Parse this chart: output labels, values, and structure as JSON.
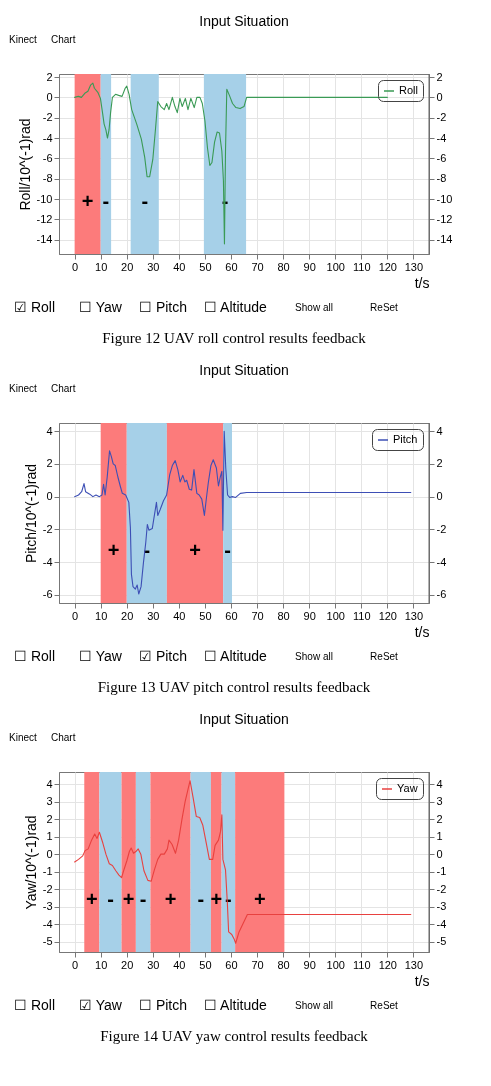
{
  "chart_data": [
    {
      "type": "line",
      "title": "Input Situation",
      "xlabel": "t/s",
      "ylabel": "Roll/10^(-1)rad",
      "legend": "top right",
      "grid": true,
      "xlim": [
        -6,
        136
      ],
      "xticks": [
        0,
        10,
        20,
        30,
        40,
        50,
        60,
        70,
        80,
        90,
        100,
        110,
        120,
        130
      ],
      "ylim": [
        -15.4,
        2.3
      ],
      "yticks": [
        -14,
        -12,
        -10,
        -8,
        -6,
        -4,
        -2,
        0,
        2
      ],
      "y2lim": [
        -15.4,
        2.3
      ],
      "y2ticks": [
        -14,
        -12,
        -10,
        -8,
        -6,
        -4,
        -2,
        0,
        2
      ],
      "series": [
        {
          "name": "Roll",
          "color": "#3a9a55",
          "x": [
            0,
            1.4,
            2.6,
            3.9,
            5.1,
            6.1,
            7,
            7.6,
            8.9,
            9.9,
            10.7,
            11.3,
            12,
            12.6,
            13.2,
            13.8,
            14.5,
            15.7,
            16.9,
            18.2,
            19.4,
            20,
            20.9,
            21.9,
            23.8,
            25.6,
            26.9,
            27.8,
            28.8,
            30,
            31,
            31.9,
            33.1,
            34.4,
            35.3,
            36.2,
            37.5,
            38.5,
            39.4,
            40.4,
            41.3,
            42.5,
            43.5,
            44.6,
            45.9,
            46.9,
            48.1,
            49,
            50,
            51,
            51.9,
            52.7,
            53.7,
            54.7,
            55.6,
            56.5,
            57.1,
            57.5,
            57.9,
            58.4,
            59.4,
            60.6,
            61.9,
            63.5,
            65,
            66,
            120
          ],
          "values": [
            0,
            0.1,
            0,
            0.4,
            0.6,
            1.2,
            1.4,
            0.9,
            0.5,
            -0.1,
            -1.5,
            -2.6,
            -3.2,
            -4.0,
            -3.2,
            -1.5,
            0,
            0.3,
            0.2,
            0.1,
            0.9,
            1.1,
            0.3,
            -1.2,
            -2.6,
            -4.1,
            -5.9,
            -7.8,
            -7.8,
            -6.1,
            -3.2,
            -0.4,
            -0.9,
            -1.2,
            -0.6,
            -1.2,
            0,
            -0.9,
            -1.5,
            -0.1,
            -0.9,
            -0.1,
            -1.2,
            -0.1,
            -1.0,
            0,
            0,
            -0.6,
            -2.3,
            -5.0,
            -6.7,
            -6.4,
            -4.4,
            -3.4,
            -3.5,
            -5.3,
            -8.2,
            -14.4,
            -5.3,
            0.8,
            0.2,
            -0.6,
            -1.0,
            -1.1,
            -0.9,
            0,
            0
          ]
        }
      ],
      "bands": [
        {
          "axis": "x",
          "from": 0,
          "to": 10,
          "color": "#fc7b7b",
          "label": "+"
        },
        {
          "axis": "x",
          "from": 10,
          "to": 14,
          "color": "#a6d0e8",
          "label": "-"
        },
        {
          "axis": "x",
          "from": 21.5,
          "to": 32.3,
          "color": "#a6d0e8",
          "label": "-"
        },
        {
          "axis": "x",
          "from": 49.6,
          "to": 65.8,
          "color": "#a6d0e8",
          "label": "-"
        }
      ],
      "annotations": [
        "Kinect",
        "Chart",
        "☑ Roll",
        "☐ Yaw",
        "☐ Pitch",
        "☐ Altitude",
        "Show all",
        "ReSet",
        "Figure 12    UAV roll control results feedback"
      ]
    },
    {
      "type": "line",
      "title": "Input Situation",
      "xlabel": "t/s",
      "ylabel": "Pitch/10^(-1)rad",
      "legend": "top right",
      "grid": true,
      "xlim": [
        -6,
        136
      ],
      "xticks": [
        0,
        10,
        20,
        30,
        40,
        50,
        60,
        70,
        80,
        90,
        100,
        110,
        120,
        130
      ],
      "ylim": [
        -6.5,
        4.5
      ],
      "yticks": [
        -6,
        -4,
        -2,
        0,
        2,
        4
      ],
      "y2lim": [
        -6.5,
        4.5
      ],
      "y2ticks": [
        -6,
        -4,
        -2,
        0,
        2,
        4
      ],
      "series": [
        {
          "name": "Pitch",
          "color": "#3d4fb5",
          "x": [
            0,
            1.5,
            2.7,
            3.6,
            4.2,
            5.8,
            7,
            8.2,
            9.5,
            10.5,
            11.1,
            11.7,
            12.5,
            13.4,
            14.1,
            14.8,
            15.6,
            16.6,
            17.5,
            18.3,
            19.6,
            20.8,
            21.4,
            21.8,
            22.4,
            23.3,
            24,
            24.6,
            25.5,
            26.4,
            27.3,
            27.9,
            28.5,
            29.8,
            30.6,
            31.4,
            31.9,
            32.8,
            34.1,
            35.3,
            36.5,
            37.5,
            38.6,
            39.6,
            40.5,
            41.5,
            42.3,
            43,
            44,
            44.9,
            45.8,
            46.9,
            47.8,
            48.8,
            49.8,
            50.6,
            51.3,
            52.3,
            53.2,
            54.4,
            55.2,
            55.9,
            56.5,
            56.9,
            57.4,
            58,
            58.7,
            59.5,
            60.5,
            61.8,
            63.6,
            66,
            129
          ],
          "values": [
            0,
            0.1,
            0.3,
            0.8,
            0.3,
            0.15,
            0,
            0.1,
            0,
            0.1,
            0.75,
            0.1,
            1.2,
            2.8,
            2.45,
            2,
            1.9,
            1.2,
            0.65,
            0.2,
            0.1,
            -0.35,
            -1.9,
            -4.75,
            -5.5,
            -5.65,
            -5.4,
            -5.95,
            -5.5,
            -4.05,
            -2.8,
            -1.7,
            -2.05,
            -1.95,
            -1.15,
            -0.35,
            -1.15,
            -0.8,
            -0.25,
            0.1,
            1.35,
            1.9,
            2.2,
            1.65,
            0.9,
            1.3,
            0.9,
            1.0,
            0.45,
            0.4,
            1.65,
            0.2,
            0.1,
            -0.15,
            -1.15,
            -0.05,
            0.85,
            1.9,
            2.25,
            1.75,
            0.65,
            1.2,
            1.55,
            -2.05,
            4.0,
            1.75,
            0.1,
            -0.05,
            0,
            -0.05,
            0.2,
            0.25,
            0.25
          ]
        }
      ],
      "bands": [
        {
          "axis": "x",
          "from": 10,
          "to": 20,
          "color": "#fc7b7b",
          "label": "+"
        },
        {
          "axis": "x",
          "from": 20,
          "to": 35.4,
          "color": "#a6d0e8",
          "label": "-"
        },
        {
          "axis": "x",
          "from": 35.4,
          "to": 57,
          "color": "#fc7b7b",
          "label": "+"
        },
        {
          "axis": "x",
          "from": 57,
          "to": 60.4,
          "color": "#a6d0e8",
          "label": "-"
        }
      ],
      "annotations": [
        "Kinect",
        "Chart",
        "☐ Roll",
        "☐ Yaw",
        "☑ Pitch",
        "☐ Altitude",
        "Show all",
        "ReSet",
        "Figure 13    UAV pitch control results feedback"
      ]
    },
    {
      "type": "line",
      "title": "Input Situation",
      "xlabel": "t/s",
      "ylabel": "Yaw/10^(-1)rad",
      "legend": "top right",
      "grid": true,
      "xlim": [
        -6,
        136
      ],
      "xticks": [
        0,
        10,
        20,
        30,
        40,
        50,
        60,
        70,
        80,
        90,
        100,
        110,
        120,
        130
      ],
      "ylim": [
        -5.6,
        4.7
      ],
      "yticks": [
        -5,
        -4,
        -3,
        -2,
        -1,
        0,
        1,
        2,
        3,
        4
      ],
      "y2lim": [
        -5.6,
        4.7
      ],
      "y2ticks": [
        -5,
        -4,
        -3,
        -2,
        -1,
        0,
        1,
        2,
        3,
        4
      ],
      "series": [
        {
          "name": "Yaw",
          "color": "#e8413f",
          "x": [
            0,
            1.5,
            3.1,
            4,
            5.2,
            6.5,
            7.7,
            8.6,
            9.5,
            10.8,
            12,
            13.3,
            14.5,
            15.8,
            17,
            18,
            18.8,
            20.1,
            21,
            21.7,
            22.6,
            23.5,
            24.4,
            25.4,
            26.6,
            28.1,
            29.4,
            30.6,
            31.9,
            33.1,
            34.4,
            35.6,
            36.2,
            37.4,
            38.7,
            39.9,
            41.2,
            42.4,
            44.3,
            45.5,
            46.7,
            48,
            49.2,
            50.5,
            51.7,
            53,
            53.9,
            55.2,
            56,
            56.5,
            56.9,
            57.9,
            58.6,
            59.1,
            60.3,
            61.2,
            61.8,
            63.1,
            64.7,
            66.3,
            69,
            129
          ],
          "values": [
            -0.45,
            -0.3,
            -0.1,
            0.2,
            0.3,
            0.8,
            1.15,
            0.9,
            1.25,
            0.65,
            0,
            -0.55,
            -0.65,
            -0.95,
            -1.2,
            -1.35,
            -0.95,
            -0.35,
            0.15,
            0.35,
            0.05,
            0.15,
            0.3,
            0,
            -0.95,
            -1.5,
            -1.55,
            -0.9,
            -0.3,
            0,
            0,
            0.3,
            0.8,
            0.55,
            0.05,
            0.8,
            2.0,
            3.0,
            4.2,
            3.2,
            2.15,
            2.1,
            1.65,
            0.65,
            -0.3,
            -0.3,
            0.5,
            0.8,
            1.3,
            2.25,
            -0.3,
            -0.9,
            -2.75,
            -4.45,
            -4.6,
            -4.85,
            -5.1,
            -4.45,
            -3.95,
            -3.45,
            -3.45,
            -3.45
          ]
        }
      ],
      "bands": [
        {
          "axis": "x",
          "from": 3.7,
          "to": 9.5,
          "color": "#fc7b7b",
          "label": "+"
        },
        {
          "axis": "x",
          "from": 9.5,
          "to": 18,
          "color": "#a6d0e8",
          "label": "-"
        },
        {
          "axis": "x",
          "from": 18,
          "to": 23.5,
          "color": "#fc7b7b",
          "label": "+"
        },
        {
          "axis": "x",
          "from": 23.5,
          "to": 29.1,
          "color": "#a6d0e8",
          "label": "-"
        },
        {
          "axis": "x",
          "from": 29.1,
          "to": 44.5,
          "color": "#fc7b7b",
          "label": "+"
        },
        {
          "axis": "x",
          "from": 44.5,
          "to": 52.3,
          "color": "#a6d0e8",
          "label": "-"
        },
        {
          "axis": "x",
          "from": 52.3,
          "to": 56.4,
          "color": "#fc7b7b",
          "label": "+"
        },
        {
          "axis": "x",
          "from": 56.4,
          "to": 61.6,
          "color": "#a6d0e8",
          "label": "-"
        },
        {
          "axis": "x",
          "from": 61.6,
          "to": 80.5,
          "color": "#fc7b7b",
          "label": "+"
        }
      ],
      "annotations": [
        "Kinect",
        "Chart",
        "☐ Roll",
        "☑ Yaw",
        "☐ Pitch",
        "☐ Altitude",
        "Show all",
        "ReSet",
        "Figure 14    UAV yaw control results feedback"
      ]
    }
  ]
}
